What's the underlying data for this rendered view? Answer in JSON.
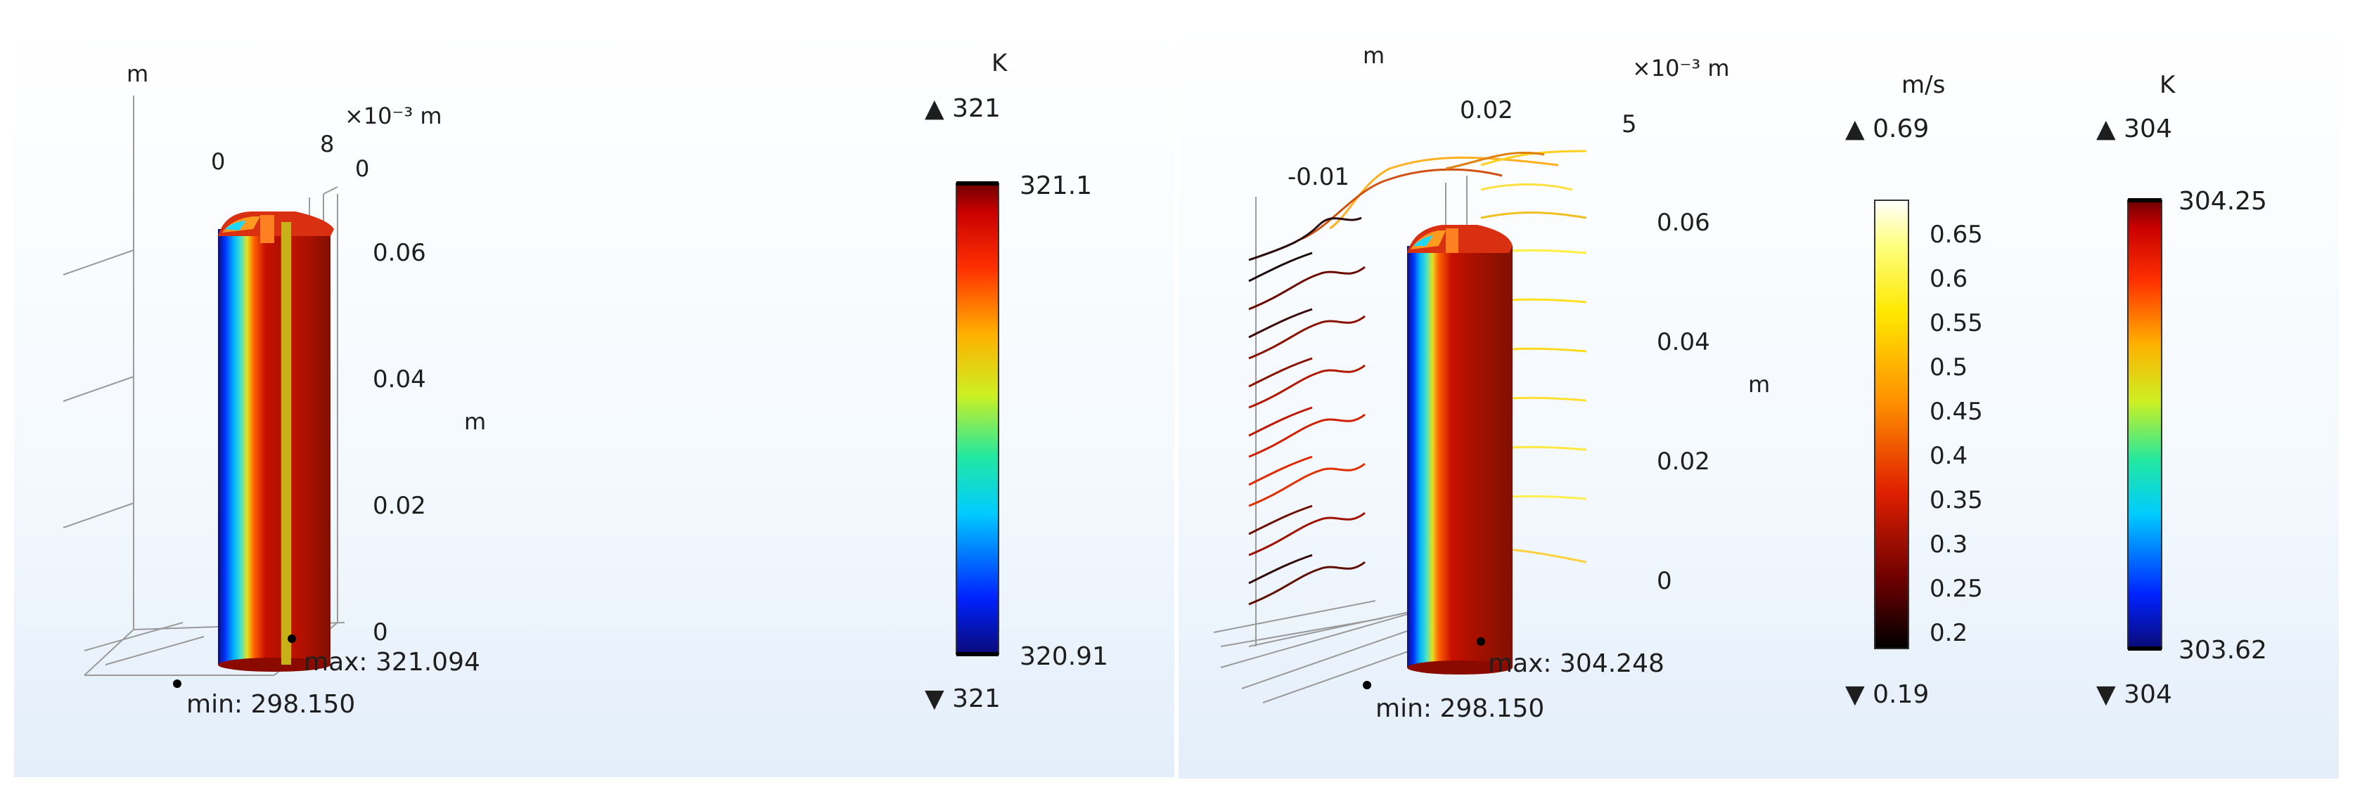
{
  "left_plot": {
    "axis_units": {
      "top_left": "m",
      "x_exp": "×10⁻³ m",
      "vertical": "m"
    },
    "x_ticks": [
      "0",
      "8"
    ],
    "depth_tick": "0",
    "z_ticks": [
      "0.06",
      "0.04",
      "0.02",
      "0"
    ],
    "max_label": "max: 321.094",
    "min_label": "min: 298.150",
    "colorbar": {
      "unit": "K",
      "top_arrow": "▲ 321",
      "top_value": "321.1",
      "bottom_value": "320.91",
      "bottom_arrow": "▼ 321",
      "colormap": "rainbow"
    }
  },
  "right_plot": {
    "axis_units": {
      "top_left": "m",
      "x_exp": "×10⁻³ m",
      "vertical": "m"
    },
    "x_ticks": [
      "-0.01",
      "0.02",
      "5"
    ],
    "z_ticks": [
      "0.06",
      "0.04",
      "0.02",
      "0"
    ],
    "max_label": "max: 304.248",
    "min_label": "min: 298.150",
    "velocity_colorbar": {
      "unit": "m/s",
      "top_arrow": "▲ 0.69",
      "ticks": [
        "0.65",
        "0.6",
        "0.55",
        "0.5",
        "0.45",
        "0.4",
        "0.35",
        "0.3",
        "0.25",
        "0.2"
      ],
      "bottom_arrow": "▼ 0.19",
      "colormap": "thermal"
    },
    "temperature_colorbar": {
      "unit": "K",
      "top_arrow": "▲ 304",
      "top_value": "304.25",
      "bottom_value": "303.62",
      "bottom_arrow": "▼ 304",
      "colormap": "rainbow"
    }
  }
}
